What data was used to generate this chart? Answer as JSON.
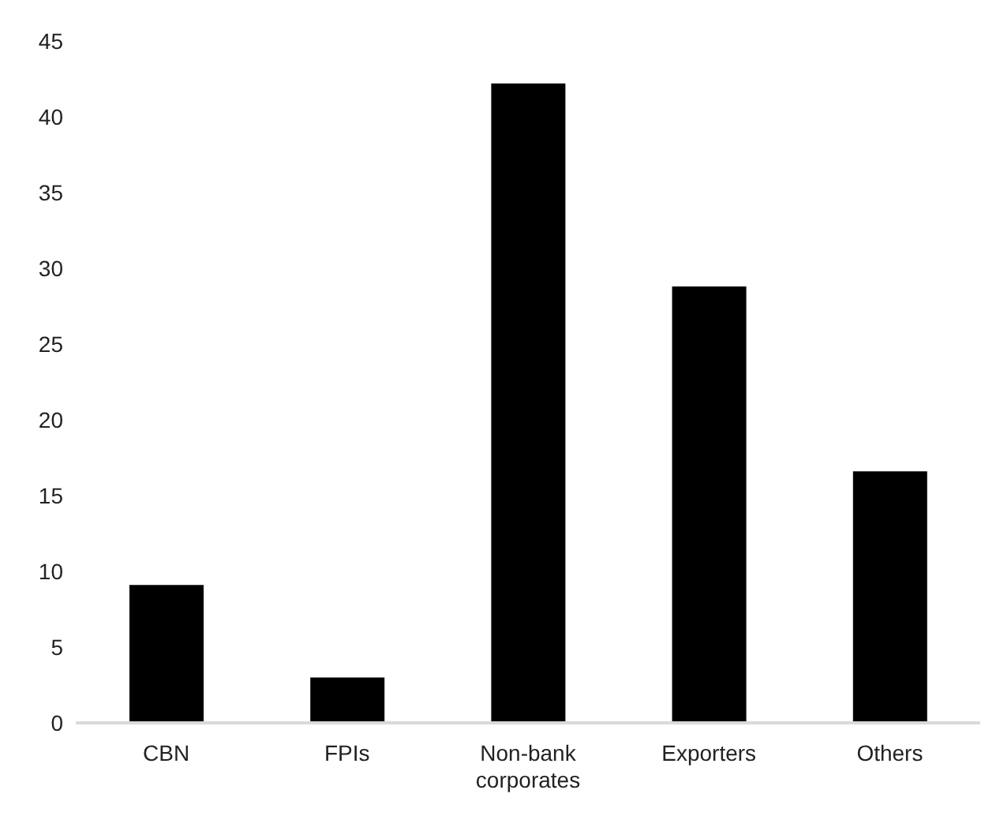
{
  "chart_data": {
    "type": "bar",
    "categories": [
      "CBN",
      "FPIs",
      "Non-bank corporates",
      "Exporters",
      "Others"
    ],
    "values": [
      9.1,
      3.0,
      42.2,
      28.8,
      16.6
    ],
    "color": "#000000",
    "ylim": [
      0,
      45
    ],
    "yticks": [
      0,
      5,
      10,
      15,
      20,
      25,
      30,
      35,
      40,
      45
    ],
    "grid": false,
    "legend": false
  }
}
